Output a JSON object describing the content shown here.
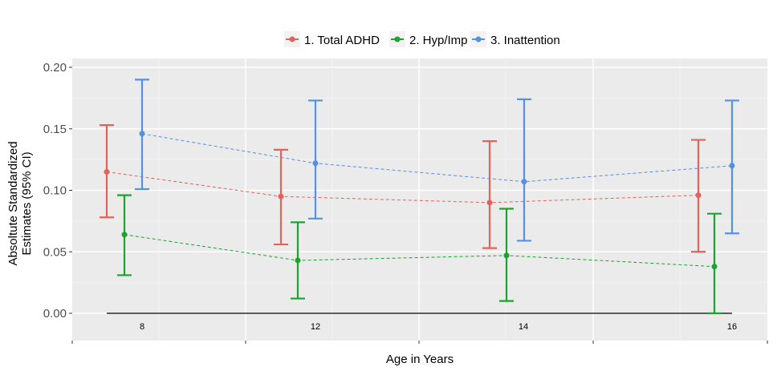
{
  "chart_data": {
    "type": "errorbar",
    "title": "",
    "xlabel": "Age in Years",
    "ylabel_lines": [
      "Absoltute Standardized",
      "Estimates (95% CI)"
    ],
    "ylim": [
      -0.025,
      0.2
    ],
    "y_ticks": [
      "0.00",
      "0.05",
      "0.10",
      "0.15",
      "0.20"
    ],
    "y_tick_values": [
      0.0,
      0.05,
      0.1,
      0.15,
      0.2
    ],
    "grid": true,
    "legend_position": "top",
    "groups": [
      "8",
      "12",
      "14",
      "16"
    ],
    "series": [
      {
        "name": "1. Total ADHD",
        "color": "#E0645B",
        "values": [
          0.115,
          0.095,
          0.09,
          0.096
        ],
        "lower": [
          0.078,
          0.056,
          0.053,
          0.05
        ],
        "upper": [
          0.153,
          0.133,
          0.14,
          0.141
        ]
      },
      {
        "name": "2. Hyp/Imp",
        "color": "#1BA22F",
        "values": [
          0.064,
          0.043,
          0.047,
          0.038
        ],
        "lower": [
          0.031,
          0.012,
          0.01,
          0.0
        ],
        "upper": [
          0.096,
          0.074,
          0.085,
          0.081
        ]
      },
      {
        "name": "3. Inattention",
        "color": "#5690E0",
        "values": [
          0.146,
          0.122,
          0.107,
          0.12
        ],
        "lower": [
          0.101,
          0.077,
          0.059,
          0.065
        ],
        "upper": [
          0.19,
          0.173,
          0.174,
          0.173
        ]
      }
    ],
    "reference_line": {
      "y": 0.0,
      "color": "#000000"
    }
  }
}
